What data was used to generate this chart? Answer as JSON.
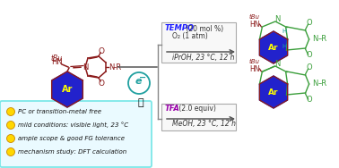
{
  "bg_color": "#ffffff",
  "bullet_box_color": "#7de8e8",
  "bullet_box_face": "#eafaff",
  "bullet_color": "#ffd700",
  "bullet_edge": "#cc8800",
  "bullets": [
    "PC or transition-metal free",
    "mild conditions: visible light, 23 °C",
    "ample scope & good FG tolerance",
    "mechanism study: DFT calculation"
  ],
  "tempo_color": "#1a1aff",
  "tfa_color": "#9900aa",
  "arrow_color": "#555555",
  "dark_red": "#8b1a1a",
  "green": "#3a9e3a",
  "teal": "#20a0a0",
  "ar_fill": "#2222cc",
  "ar_text": "#ffff00",
  "tempo_line1": "TEMPO",
  "tempo_line1b": " (20 mol %)",
  "tempo_line2": "O₂ (1 atm)",
  "cond1": "iPrOH, 23 °C, 12 h",
  "tfa_line1": "TFA",
  "tfa_line1b": " (2.0 equiv)",
  "cond2": "MeOH, 23 °C, 12 h",
  "box_edge": "#aaaaaa",
  "box_face": "#f8f8f8"
}
